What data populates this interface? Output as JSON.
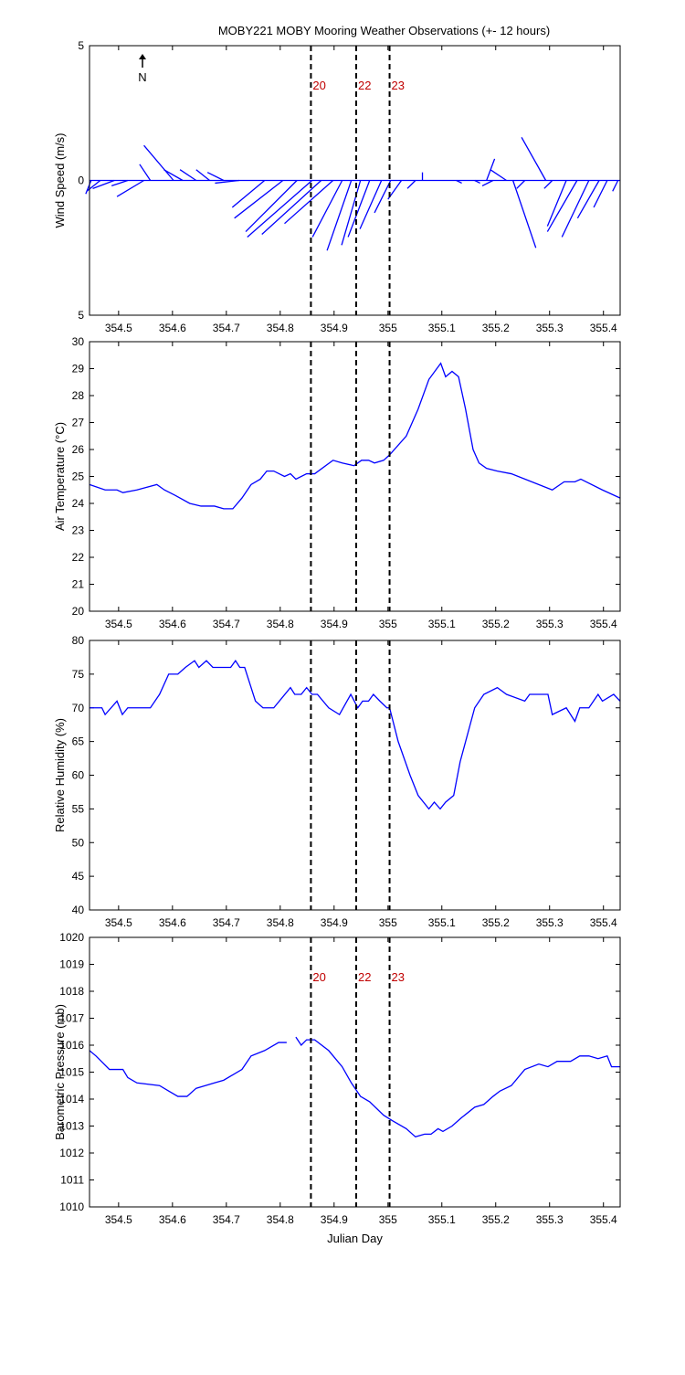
{
  "chart_data": [
    {
      "type": "stick",
      "title": "MOBY221 MOBY Mooring Weather Observations (+- 12 hours)",
      "ylabel": "Wind Speed (m/s)",
      "annotation": "N",
      "color": "#0000ff",
      "marker_color": "#c00000",
      "x": [
        354.449,
        354.466,
        354.492,
        354.517,
        354.547,
        354.559,
        354.602,
        354.619,
        354.644,
        354.669,
        354.695,
        354.724,
        354.771,
        354.805,
        354.831,
        354.859,
        354.876,
        354.898,
        354.915,
        354.932,
        354.949,
        354.966,
        354.988,
        355.005,
        355.025,
        355.051,
        355.064,
        355.127,
        355.161,
        355.183,
        355.195,
        355.22,
        355.232,
        355.254,
        355.293,
        355.305,
        355.331,
        355.351,
        355.373,
        355.392,
        355.407,
        355.427
      ],
      "u": [
        -0.2,
        -0.5,
        -0.8,
        -0.6,
        -1.0,
        -0.4,
        -1.1,
        -0.7,
        -0.6,
        -0.5,
        -0.6,
        -0.9,
        -1.2,
        -1.8,
        -1.9,
        -2.4,
        -2.2,
        -1.8,
        -1.1,
        -0.9,
        -0.7,
        -0.8,
        -0.8,
        -0.6,
        -0.5,
        -0.3,
        0.0,
        0.2,
        0.2,
        0.3,
        -0.4,
        -0.6,
        0.85,
        -0.3,
        -0.9,
        -0.3,
        -0.7,
        -1.1,
        -1.0,
        -0.8,
        -0.5,
        -0.2
      ],
      "v": [
        -0.5,
        -0.4,
        -0.3,
        -0.2,
        -0.6,
        0.6,
        1.3,
        0.4,
        0.4,
        0.4,
        0.3,
        -0.1,
        -1.0,
        -1.4,
        -1.9,
        -2.1,
        -2.0,
        -1.6,
        -2.1,
        -2.6,
        -2.4,
        -2.1,
        -1.8,
        -1.2,
        -0.7,
        -0.3,
        0.3,
        -0.1,
        -0.1,
        0.8,
        -0.2,
        0.4,
        -2.5,
        -0.3,
        1.6,
        -0.3,
        -1.7,
        -1.9,
        -2.1,
        -1.4,
        -1.0,
        -0.4
      ],
      "xlim": [
        354.446,
        355.431
      ],
      "xticks": [
        354.5,
        354.6,
        354.7,
        354.8,
        354.9,
        355,
        355.1,
        355.2,
        355.3,
        355.4
      ],
      "ylim": [
        -5,
        5
      ],
      "yticks": [
        {
          "value": -5,
          "label": "5"
        },
        0,
        5
      ],
      "vlines": [
        {
          "x": 354.857,
          "label": "20"
        },
        {
          "x": 354.941,
          "label": "22"
        },
        {
          "x": 355.003,
          "label": "23"
        }
      ]
    },
    {
      "type": "line",
      "ylabel": "Air Temperature (°C)",
      "color": "#0000ff",
      "x": [
        354.446,
        354.475,
        354.497,
        354.508,
        354.534,
        354.571,
        354.585,
        354.605,
        354.632,
        354.653,
        354.678,
        354.695,
        354.712,
        354.729,
        354.746,
        354.763,
        354.775,
        354.788,
        354.808,
        354.819,
        354.829,
        354.849,
        354.864,
        354.898,
        354.915,
        354.937,
        354.951,
        354.964,
        354.975,
        354.992,
        355.003,
        355.034,
        355.056,
        355.076,
        355.098,
        355.107,
        355.119,
        355.131,
        355.144,
        355.158,
        355.169,
        355.183,
        355.203,
        355.229,
        355.305,
        355.327,
        355.347,
        355.358,
        355.398,
        355.431
      ],
      "values": [
        24.7,
        24.5,
        24.5,
        24.4,
        24.5,
        24.7,
        24.5,
        24.3,
        24.0,
        23.9,
        23.9,
        23.8,
        23.8,
        24.2,
        24.7,
        24.9,
        25.2,
        25.2,
        25.0,
        25.1,
        24.9,
        25.1,
        25.1,
        25.6,
        25.5,
        25.4,
        25.6,
        25.6,
        25.5,
        25.6,
        25.8,
        26.5,
        27.5,
        28.6,
        29.2,
        28.7,
        28.9,
        28.7,
        27.5,
        26.0,
        25.5,
        25.3,
        25.2,
        25.1,
        24.5,
        24.8,
        24.8,
        24.9,
        24.5,
        24.2
      ],
      "xlim": [
        354.446,
        355.431
      ],
      "xticks": [
        354.5,
        354.6,
        354.7,
        354.8,
        354.9,
        355,
        355.1,
        355.2,
        355.3,
        355.4
      ],
      "ylim": [
        20,
        30
      ],
      "yticks": [
        20,
        21,
        22,
        23,
        24,
        25,
        26,
        27,
        28,
        29,
        30
      ],
      "vlines": [
        {
          "x": 354.857
        },
        {
          "x": 354.941
        },
        {
          "x": 355.003
        }
      ]
    },
    {
      "type": "line",
      "ylabel": "Relative Humidity (%)",
      "color": "#0000ff",
      "x": [
        354.446,
        354.469,
        354.475,
        354.497,
        354.507,
        354.517,
        354.559,
        354.576,
        354.593,
        354.61,
        354.624,
        354.641,
        354.649,
        354.663,
        354.675,
        354.708,
        354.717,
        354.725,
        354.734,
        354.754,
        354.768,
        354.788,
        354.819,
        354.827,
        354.839,
        354.849,
        354.859,
        354.869,
        354.89,
        354.91,
        354.931,
        354.944,
        354.953,
        354.964,
        354.973,
        354.985,
        354.998,
        355.003,
        355.019,
        355.041,
        355.056,
        355.076,
        355.086,
        355.097,
        355.107,
        355.122,
        355.134,
        355.161,
        355.178,
        355.203,
        355.22,
        355.254,
        355.263,
        355.297,
        355.305,
        355.331,
        355.347,
        355.356,
        355.373,
        355.39,
        355.398,
        355.419,
        355.431
      ],
      "values": [
        70,
        70,
        69,
        71,
        69,
        70,
        70,
        72,
        75,
        75,
        76,
        77,
        76,
        77,
        76,
        76,
        77,
        76,
        76,
        71,
        70,
        70,
        73,
        72,
        72,
        73,
        72,
        72,
        70,
        69,
        72,
        70,
        71,
        71,
        72,
        71,
        70,
        70,
        65,
        60,
        57,
        55,
        56,
        55,
        56,
        57,
        62,
        70,
        72,
        73,
        72,
        71,
        72,
        72,
        69,
        70,
        68,
        70,
        70,
        72,
        71,
        72,
        71
      ],
      "xlim": [
        354.446,
        355.431
      ],
      "xticks": [
        354.5,
        354.6,
        354.7,
        354.8,
        354.9,
        355,
        355.1,
        355.2,
        355.3,
        355.4
      ],
      "ylim": [
        40,
        80
      ],
      "yticks": [
        40,
        45,
        50,
        55,
        60,
        65,
        70,
        75,
        80
      ],
      "vlines": [
        {
          "x": 354.857
        },
        {
          "x": 354.941
        },
        {
          "x": 355.003
        }
      ]
    },
    {
      "type": "line",
      "ylabel": "Barometric Pressure (mb)",
      "xlabel": "Julian Day",
      "color": "#0000ff",
      "marker_color": "#c00000",
      "x": [
        354.446,
        354.458,
        354.483,
        354.508,
        354.517,
        354.534,
        354.576,
        354.593,
        354.61,
        354.627,
        354.644,
        354.661,
        354.678,
        354.695,
        354.729,
        354.746,
        354.771,
        354.797,
        354.812,
        354.82,
        354.829,
        354.839,
        354.849,
        354.864,
        354.89,
        354.915,
        354.932,
        354.949,
        354.966,
        354.992,
        355.008,
        355.034,
        355.051,
        355.068,
        355.08,
        355.093,
        355.102,
        355.119,
        355.136,
        355.161,
        355.178,
        355.195,
        355.208,
        355.229,
        355.254,
        355.28,
        355.297,
        355.314,
        355.339,
        355.356,
        355.373,
        355.39,
        355.407,
        355.415,
        355.431
      ],
      "values": [
        1015.8,
        1015.6,
        1015.1,
        1015.1,
        1014.8,
        1014.6,
        1014.5,
        1014.3,
        1014.1,
        1014.1,
        1014.4,
        1014.5,
        1014.6,
        1014.7,
        1015.1,
        1015.6,
        1015.8,
        1016.1,
        1016.1,
        null,
        1016.3,
        1016.0,
        1016.2,
        1016.2,
        1015.8,
        1015.2,
        1014.6,
        1014.1,
        1013.9,
        1013.4,
        1013.2,
        1012.9,
        1012.6,
        1012.7,
        1012.7,
        1012.9,
        1012.8,
        1013.0,
        1013.3,
        1013.7,
        1013.8,
        1014.1,
        1014.3,
        1014.5,
        1015.1,
        1015.3,
        1015.2,
        1015.4,
        1015.4,
        1015.6,
        1015.6,
        1015.5,
        1015.6,
        1015.2,
        1015.2
      ],
      "xlim": [
        354.446,
        355.431
      ],
      "xticks": [
        354.5,
        354.6,
        354.7,
        354.8,
        354.9,
        355,
        355.1,
        355.2,
        355.3,
        355.4
      ],
      "ylim": [
        1010,
        1020
      ],
      "yticks": [
        1010,
        1011,
        1012,
        1013,
        1014,
        1015,
        1016,
        1017,
        1018,
        1019,
        1020
      ],
      "vlines": [
        {
          "x": 354.857,
          "label": "20"
        },
        {
          "x": 354.941,
          "label": "22"
        },
        {
          "x": 355.003,
          "label": "23"
        }
      ]
    }
  ]
}
